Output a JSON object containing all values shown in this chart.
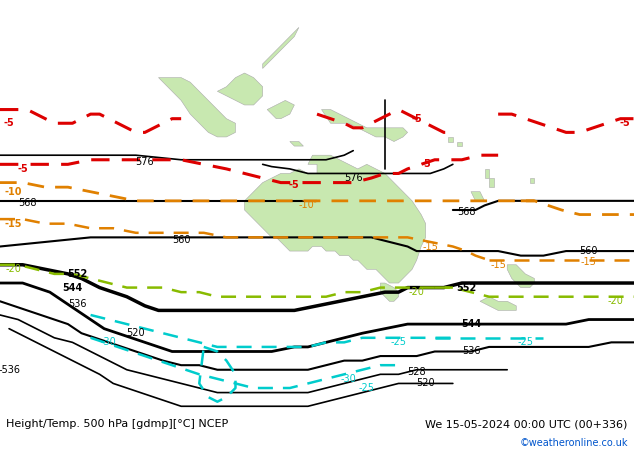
{
  "title_left": "Height/Temp. 500 hPa [gdmp][°C] NCEP",
  "title_right": "We 15-05-2024 00:00 UTC (00+336)",
  "credit": "©weatheronline.co.uk",
  "map_bg": "#d8dce8",
  "land_color": "#c8e8b0",
  "land_edge": "#aaaaaa",
  "black": "#000000",
  "red": "#dd0000",
  "orange": "#e08000",
  "ygreen": "#88bb00",
  "cyan": "#00cccc",
  "text_color": "#000000",
  "credit_color": "#0055cc",
  "bar_color": "#ffffff",
  "xlim": [
    60,
    200
  ],
  "ylim": [
    -68,
    22
  ],
  "figw": 6.34,
  "figh": 4.49,
  "dpi": 100
}
